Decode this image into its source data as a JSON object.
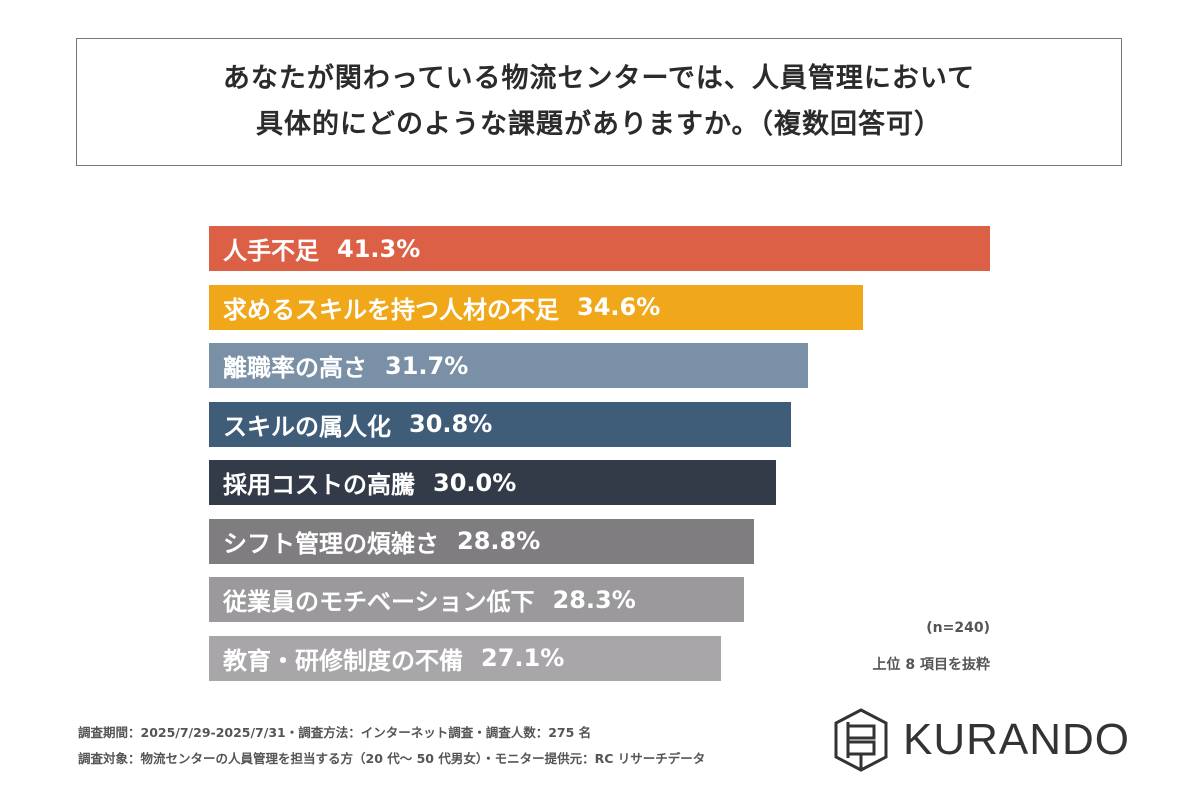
{
  "title": {
    "line1": "あなたが関わっている物流センターでは、人員管理において",
    "line2": "具体的にどのような課題がありますか。（複数回答可）"
  },
  "chart_data": {
    "type": "bar",
    "orientation": "horizontal",
    "categories": [
      "人手不足",
      "求めるスキルを持つ人材の不足",
      "離職率の高さ",
      "スキルの属人化",
      "採用コストの高騰",
      "シフト管理の煩雑さ",
      "従業員のモチベーション低下",
      "教育・研修制度の不備"
    ],
    "values": [
      41.3,
      34.6,
      31.7,
      30.8,
      30.0,
      28.8,
      28.3,
      27.1
    ],
    "unit": "%",
    "colors": [
      "#dc6045",
      "#f0a81a",
      "#7a90a6",
      "#3f5c78",
      "#333a48",
      "#7f7d80",
      "#9b999c",
      "#a8a6a9"
    ],
    "grid": false,
    "legend": "none"
  },
  "sample": "(n=240)",
  "note": "上位 8 項目を抜粋",
  "footer": {
    "line1": "調査期間：2025/7/29-2025/7/31・調査方法：インターネット調査・調査人数：275 名",
    "line2": "調査対象：物流センターの人員管理を担当する方（20 代～ 50 代男女）・モニター提供元：RC リサーチデータ"
  },
  "logo": {
    "text": "KURANDO"
  }
}
